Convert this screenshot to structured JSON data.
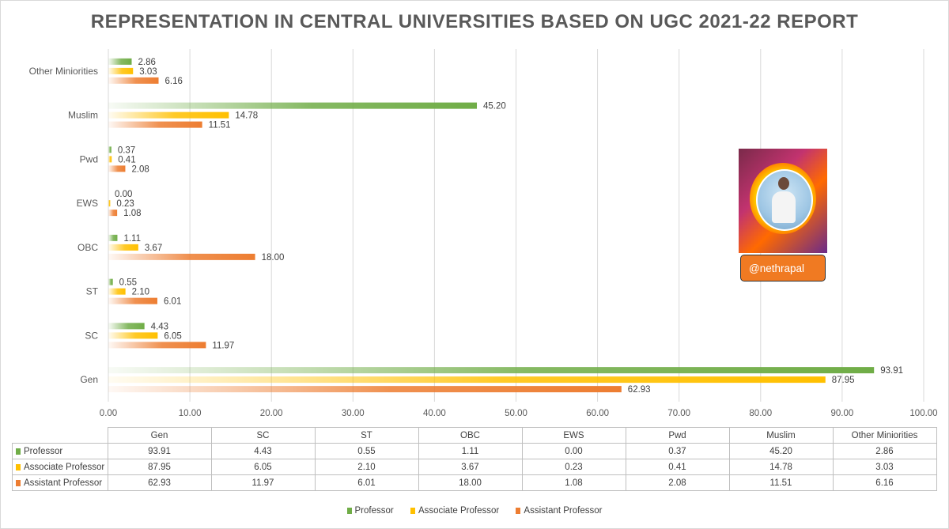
{
  "colors": {
    "professor": "#70ad47",
    "associate": "#ffc000",
    "assistant": "#ed7d31"
  },
  "badge": {
    "handle": "@nethrapal"
  },
  "chart_data": {
    "type": "bar",
    "orientation": "horizontal",
    "title": "REPRESENTATION IN CENTRAL UNIVERSITIES BASED ON UGC 2021-22 REPORT",
    "categories": [
      "Gen",
      "SC",
      "ST",
      "OBC",
      "EWS",
      "Pwd",
      "Muslim",
      "Other Miniorities"
    ],
    "category_labels": [
      "Gen",
      "SC",
      "ST",
      "OBC",
      "EWS",
      "Pwd",
      "Muslim",
      "Other Miniorities"
    ],
    "series": [
      {
        "name": "Professor",
        "color": "#70ad47",
        "values": [
          93.91,
          4.43,
          0.55,
          1.11,
          0.0,
          0.37,
          45.2,
          2.86
        ],
        "labels": [
          "93.91",
          "4.43",
          "0.55",
          "1.11",
          "0.00",
          "0.37",
          "45.20",
          "2.86"
        ]
      },
      {
        "name": "Associate Professor",
        "color": "#ffc000",
        "values": [
          87.95,
          6.05,
          2.1,
          3.67,
          0.23,
          0.41,
          14.78,
          3.03
        ],
        "labels": [
          "87.95",
          "6.05",
          "2.10",
          "3.67",
          "0.23",
          "0.41",
          "14.78",
          "3.03"
        ]
      },
      {
        "name": "Assistant Professor",
        "color": "#ed7d31",
        "values": [
          62.93,
          11.97,
          6.01,
          18.0,
          1.08,
          2.08,
          11.51,
          6.16
        ],
        "labels": [
          "62.93",
          "11.97",
          "6.01",
          "18.00",
          "1.08",
          "2.08",
          "11.51",
          "6.16"
        ]
      }
    ],
    "xlim": [
      0,
      100
    ],
    "xticks": [
      0,
      10,
      20,
      30,
      40,
      50,
      60,
      70,
      80,
      90,
      100
    ],
    "xtick_labels": [
      "0.00",
      "10.00",
      "20.00",
      "30.00",
      "40.00",
      "50.00",
      "60.00",
      "70.00",
      "80.00",
      "90.00",
      "100.00"
    ],
    "grid": true,
    "legend": {
      "position": "bottom",
      "items": [
        "Professor",
        "Associate Professor",
        "Assistant Professor"
      ]
    },
    "data_table": true
  }
}
